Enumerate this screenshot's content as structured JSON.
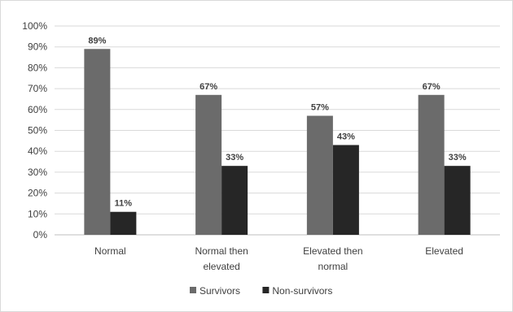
{
  "chart_data": {
    "type": "bar",
    "title": "",
    "xlabel": "",
    "ylabel": "",
    "ylim": [
      0,
      100
    ],
    "yticks": [
      "0%",
      "10%",
      "20%",
      "30%",
      "40%",
      "50%",
      "60%",
      "70%",
      "80%",
      "90%",
      "100%"
    ],
    "categories": [
      [
        "Normal"
      ],
      [
        "Normal then",
        "elevated"
      ],
      [
        "Elevated then",
        "normal"
      ],
      [
        "Elevated"
      ]
    ],
    "series": [
      {
        "name": "Survivors",
        "color": "#6b6b6b",
        "values": [
          89,
          67,
          57,
          67
        ],
        "labels": [
          "89%",
          "67%",
          "57%",
          "67%"
        ]
      },
      {
        "name": "Non-survivors",
        "color": "#262626",
        "values": [
          11,
          33,
          43,
          33
        ],
        "labels": [
          "11%",
          "33%",
          "43%",
          "33%"
        ]
      }
    ],
    "grid": true,
    "legend": "bottom"
  }
}
